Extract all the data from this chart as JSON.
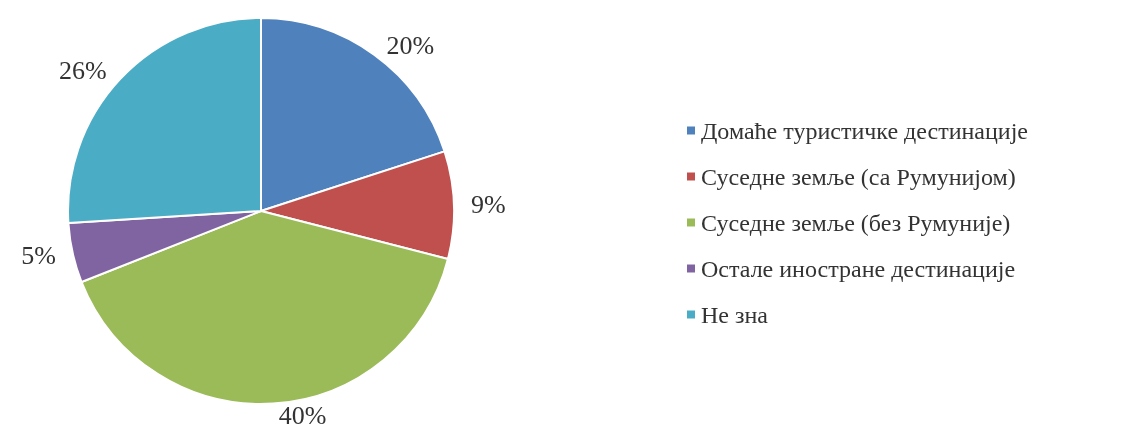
{
  "chart_data": {
    "type": "pie",
    "categories": [
      "Домаће туристичке дестинације",
      "Суседне земље (са Румунијом)",
      "Суседне земље (без Румуније)",
      "Остале иностране дестинације",
      "Не зна"
    ],
    "values": [
      20,
      9,
      40,
      5,
      26
    ],
    "colors": [
      "#4f81bd",
      "#c0504d",
      "#9bbb59",
      "#8064a2",
      "#4bacc6"
    ],
    "value_labels": [
      "20%",
      "9%",
      "40%",
      "5%",
      "26%"
    ],
    "legend": "right"
  }
}
